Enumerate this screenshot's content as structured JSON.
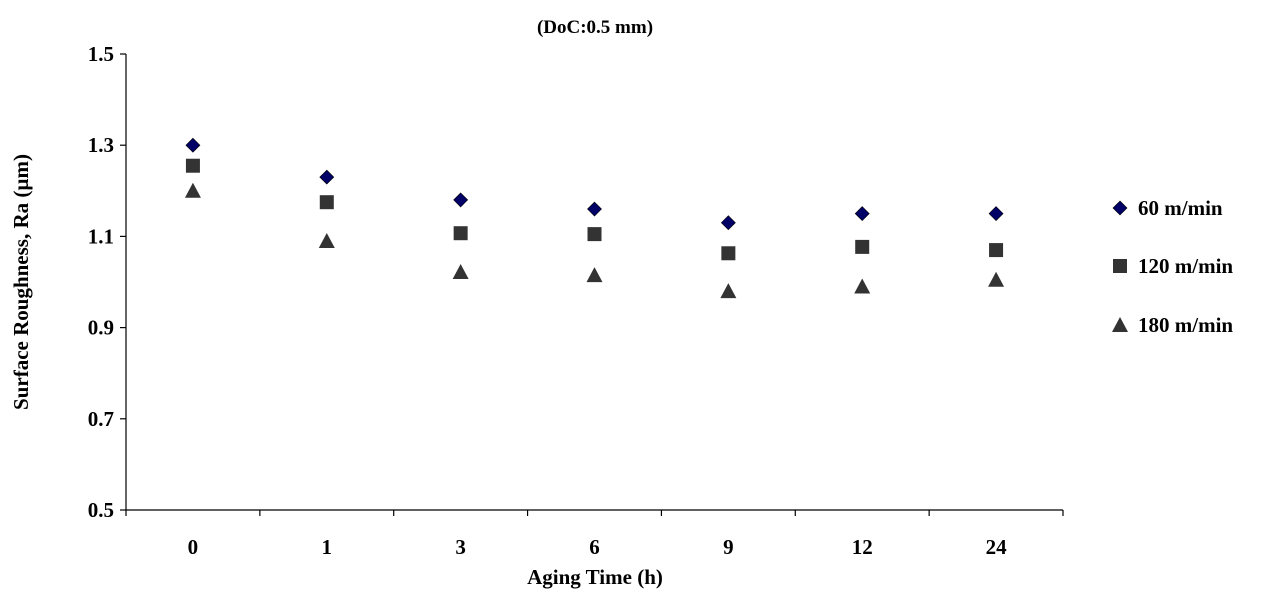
{
  "chart_data": {
    "type": "scatter",
    "title": "(DoC:0.5 mm)",
    "xlabel": "Aging Time (h)",
    "ylabel": "Surface Roughness, Ra (µm)",
    "categories": [
      "0",
      "1",
      "3",
      "6",
      "9",
      "12",
      "24"
    ],
    "ylim": [
      0.5,
      1.5
    ],
    "yticks": [
      "0.5",
      "0.7",
      "0.9",
      "1.1",
      "1.3",
      "1.5"
    ],
    "grid": false,
    "legend_position": "right",
    "series": [
      {
        "name": "60 m/min",
        "marker": "diamond",
        "color": "#000066",
        "values": [
          1.3,
          1.23,
          1.18,
          1.16,
          1.13,
          1.15,
          1.15
        ]
      },
      {
        "name": "120 m/min",
        "marker": "square",
        "color": "#333333",
        "values": [
          1.255,
          1.175,
          1.107,
          1.105,
          1.063,
          1.077,
          1.07
        ]
      },
      {
        "name": "180 m/min",
        "marker": "triangle",
        "color": "#333333",
        "values": [
          1.2,
          1.09,
          1.022,
          1.015,
          0.98,
          0.99,
          1.005
        ]
      }
    ]
  }
}
